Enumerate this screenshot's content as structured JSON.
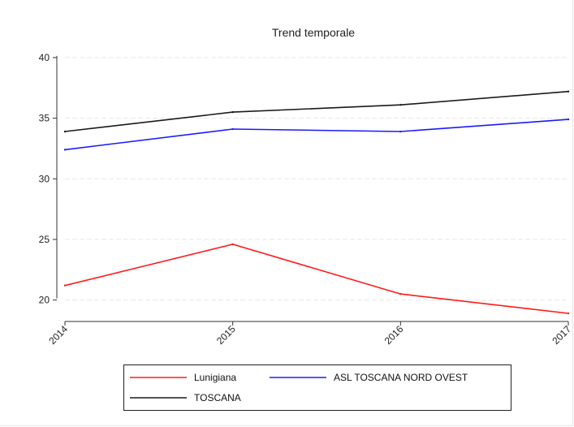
{
  "chart_data": {
    "type": "line",
    "title": "Trend temporale",
    "xlabel": "",
    "ylabel": "",
    "x": [
      "2014",
      "2015",
      "2016",
      "2017"
    ],
    "ylim": [
      18.5,
      41
    ],
    "yticks": [
      20,
      25,
      30,
      35,
      40
    ],
    "grid": true,
    "legend_position": "bottom",
    "series": [
      {
        "name": "Lunigiana",
        "color": "#ff1a1a",
        "values": [
          21.2,
          24.6,
          20.5,
          18.9
        ]
      },
      {
        "name": "ASL TOSCANA NORD OVEST",
        "color": "#1a1aff",
        "values": [
          32.4,
          34.1,
          33.9,
          34.9
        ]
      },
      {
        "name": "TOSCANA",
        "color": "#1a1a1a",
        "values": [
          33.9,
          35.5,
          36.1,
          37.2
        ]
      }
    ]
  }
}
